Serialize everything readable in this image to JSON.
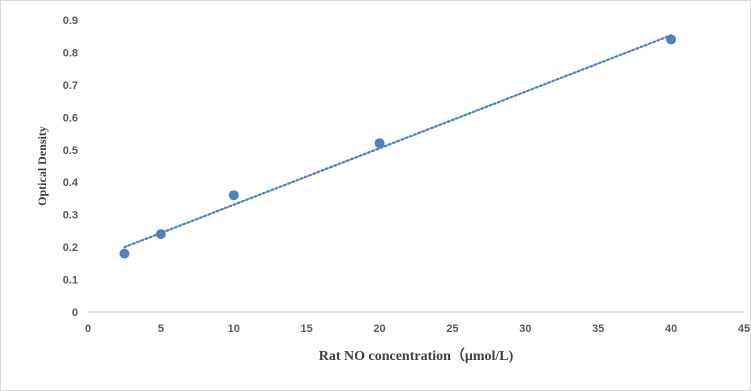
{
  "chart_data": {
    "type": "scatter",
    "title": "",
    "xlabel": "Rat  NO concentration（μmol/L)",
    "ylabel": "Optical Density",
    "xlim": [
      0,
      45
    ],
    "ylim": [
      0,
      0.9
    ],
    "xticks": [
      0,
      5,
      10,
      15,
      20,
      25,
      30,
      35,
      40,
      45
    ],
    "yticks": [
      0,
      0.1,
      0.2,
      0.3,
      0.4,
      0.5,
      0.6,
      0.7,
      0.8,
      0.9
    ],
    "grid": false,
    "legend": "none",
    "series": [
      {
        "x": [
          2.5,
          5,
          10,
          20,
          40
        ],
        "y": [
          0.18,
          0.24,
          0.36,
          0.52,
          0.84
        ],
        "marker_color": "#4f81bd"
      }
    ],
    "trendline": {
      "kind": "linear",
      "style": "dotted",
      "color": "#4f81bd",
      "x": [
        2.5,
        40
      ],
      "y": [
        0.2,
        0.853
      ]
    }
  }
}
